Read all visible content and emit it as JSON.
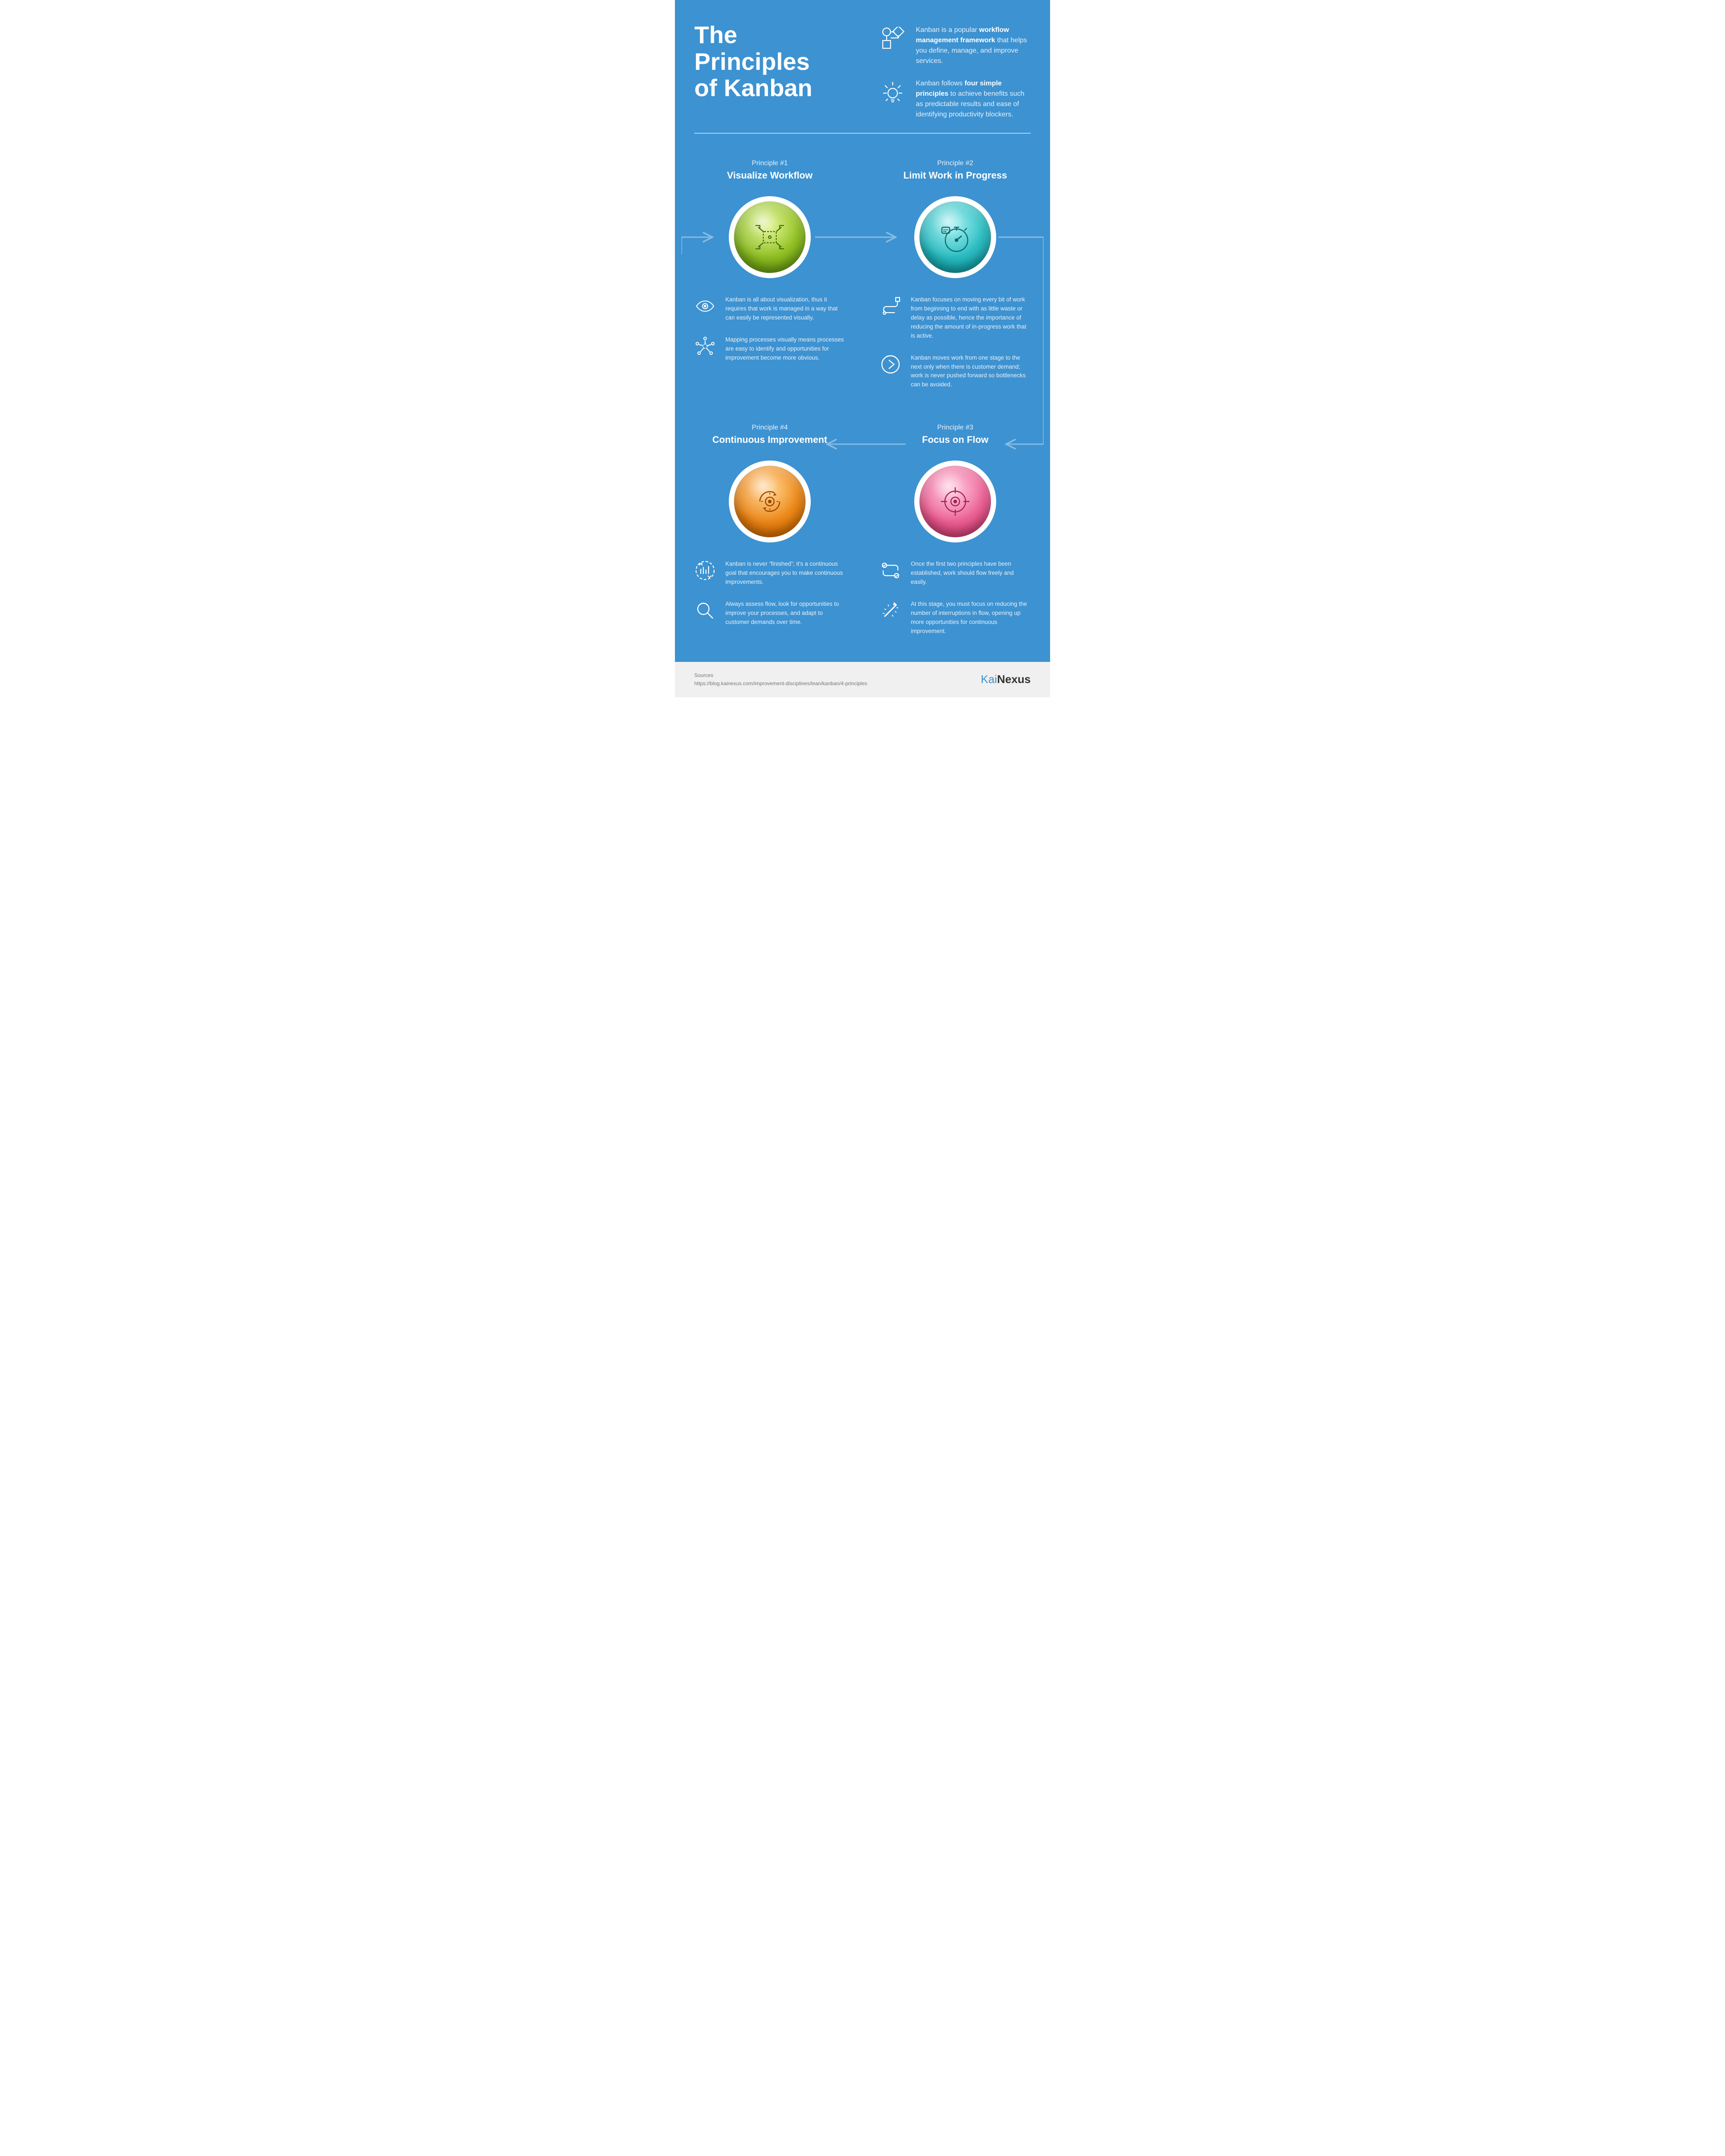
{
  "colors": {
    "bg": "#3d92d1",
    "arrow": "#86bce2",
    "text_light": "#e8f1f9",
    "footer_bg": "#f0f0f0",
    "footer_text": "#777",
    "logo_accent": "#3d92d1",
    "logo_dark": "#333"
  },
  "title": "The\nPrinciples\nof Kanban",
  "intro": [
    {
      "icon": "shapes",
      "text_before": "Kanban is a popular ",
      "bold": "workflow management framework",
      "text_after": " that helps you define, manage, and improve services."
    },
    {
      "icon": "bulb",
      "text_before": "Kanban follows ",
      "bold": "four simple principles",
      "text_after": " to achieve benefits such as predictable results and ease of identifying productivity blockers."
    }
  ],
  "principles": [
    {
      "order": 1,
      "label": "Principle #1",
      "title": "Visualize Workflow",
      "medallion": {
        "gradient_top": "#c9e84a",
        "gradient_bottom": "#6fa80f",
        "icon": "visualize",
        "icon_stroke": "#3e6a0a"
      },
      "bullets": [
        {
          "icon": "eye",
          "text": "Kanban is all about visualization, thus it requires that work is managed in a way that can easily be represented visually."
        },
        {
          "icon": "network",
          "text": "Mapping processes visually means processes are easy to identify and opportunities for improvement become more obvious."
        }
      ]
    },
    {
      "order": 2,
      "label": "Principle #2",
      "title": "Limit Work in Progress",
      "medallion": {
        "gradient_top": "#5fe0e0",
        "gradient_bottom": "#0fa8b0",
        "icon": "stopwatch",
        "icon_stroke": "#0c6a6f"
      },
      "bullets": [
        {
          "icon": "route",
          "text": "Kanban focuses on moving every bit of work from beginning to end with as little waste or delay as possible, hence the importance of reducing the amount of in-progress work that is active."
        },
        {
          "icon": "next",
          "text": "Kanban moves work from one stage to the next only when there is customer demand; work is never pushed forward so bottlenecks can be avoided."
        }
      ]
    },
    {
      "order": 4,
      "label": "Principle #4",
      "title": "Continuous Improvement",
      "medallion": {
        "gradient_top": "#ffb347",
        "gradient_bottom": "#e07000",
        "icon": "cycle",
        "icon_stroke": "#a04800"
      },
      "bullets": [
        {
          "icon": "growth",
          "text": "Kanban is never “finished”; it's a continuous goal that encourages you to make continuous improvements."
        },
        {
          "icon": "magnify",
          "text": "Always assess flow, look for opportunities to improve your processes, and adapt to customer demands over time."
        }
      ]
    },
    {
      "order": 3,
      "label": "Principle #3",
      "title": "Focus on Flow",
      "medallion": {
        "gradient_top": "#ff9ec4",
        "gradient_bottom": "#e0407a",
        "icon": "target",
        "icon_stroke": "#a02050"
      },
      "bullets": [
        {
          "icon": "checks",
          "text": "Once the first two principles have been established, work should flow freely and easily."
        },
        {
          "icon": "spark",
          "text": "At this stage, you must focus on reducing the number of interruptions in flow, opening up more opportunities for continuous improvement."
        }
      ]
    }
  ],
  "footer": {
    "sources_label": "Sources",
    "sources_url": "https://blog.kainexus.com/improvement-disciplines/lean/kanban/4-principles",
    "logo_part1": "Kai",
    "logo_part2": "Nexus"
  }
}
